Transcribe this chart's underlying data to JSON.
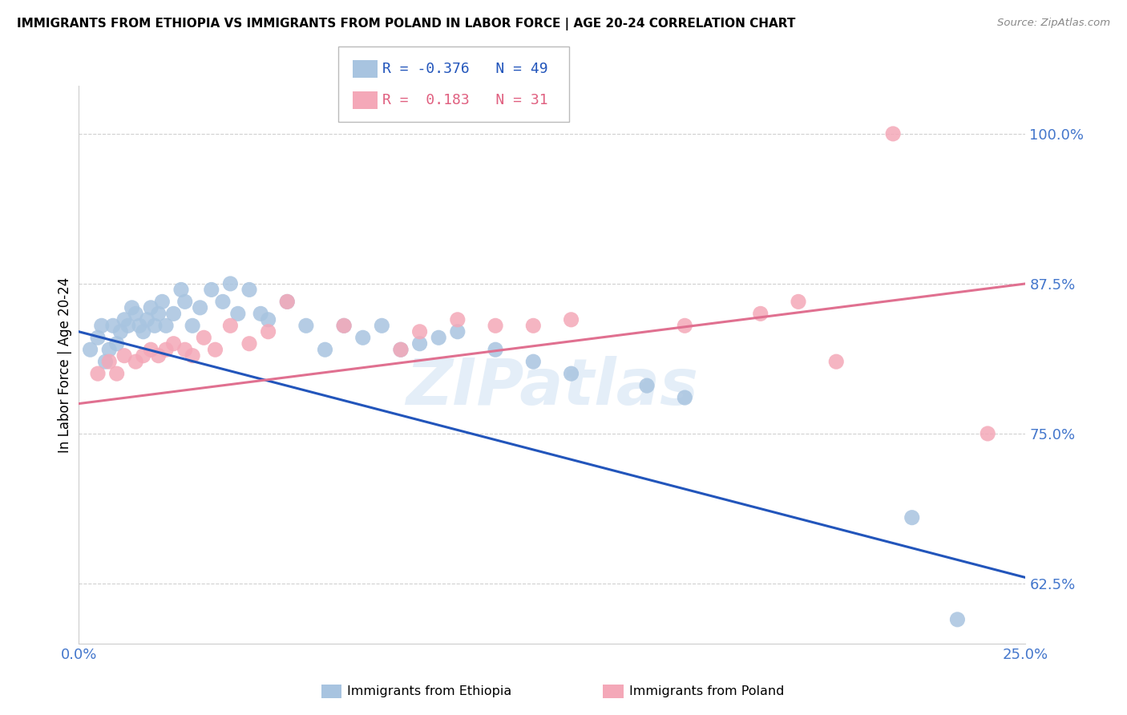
{
  "title": "IMMIGRANTS FROM ETHIOPIA VS IMMIGRANTS FROM POLAND IN LABOR FORCE | AGE 20-24 CORRELATION CHART",
  "source": "Source: ZipAtlas.com",
  "ylabel": "In Labor Force | Age 20-24",
  "yticks": [
    0.625,
    0.75,
    0.875,
    1.0
  ],
  "ytick_labels": [
    "62.5%",
    "75.0%",
    "87.5%",
    "100.0%"
  ],
  "xlim": [
    0.0,
    0.25
  ],
  "ylim": [
    0.575,
    1.04
  ],
  "ethiopia_color": "#a8c4e0",
  "poland_color": "#f4a8b8",
  "ethiopia_line_color": "#2255bb",
  "poland_line_color": "#e07090",
  "R_ethiopia": -0.376,
  "N_ethiopia": 49,
  "R_poland": 0.183,
  "N_poland": 31,
  "ethiopia_x": [
    0.003,
    0.005,
    0.006,
    0.007,
    0.008,
    0.009,
    0.01,
    0.011,
    0.012,
    0.013,
    0.014,
    0.015,
    0.016,
    0.017,
    0.018,
    0.019,
    0.02,
    0.021,
    0.022,
    0.023,
    0.025,
    0.027,
    0.028,
    0.03,
    0.032,
    0.035,
    0.038,
    0.04,
    0.042,
    0.045,
    0.048,
    0.05,
    0.055,
    0.06,
    0.065,
    0.07,
    0.075,
    0.08,
    0.085,
    0.09,
    0.095,
    0.1,
    0.11,
    0.12,
    0.13,
    0.15,
    0.16,
    0.22,
    0.232
  ],
  "ethiopia_y": [
    0.82,
    0.83,
    0.84,
    0.81,
    0.82,
    0.84,
    0.825,
    0.835,
    0.845,
    0.84,
    0.855,
    0.85,
    0.84,
    0.835,
    0.845,
    0.855,
    0.84,
    0.85,
    0.86,
    0.84,
    0.85,
    0.87,
    0.86,
    0.84,
    0.855,
    0.87,
    0.86,
    0.875,
    0.85,
    0.87,
    0.85,
    0.845,
    0.86,
    0.84,
    0.82,
    0.84,
    0.83,
    0.84,
    0.82,
    0.825,
    0.83,
    0.835,
    0.82,
    0.81,
    0.8,
    0.79,
    0.78,
    0.68,
    0.595
  ],
  "poland_x": [
    0.005,
    0.008,
    0.01,
    0.012,
    0.015,
    0.017,
    0.019,
    0.021,
    0.023,
    0.025,
    0.028,
    0.03,
    0.033,
    0.036,
    0.04,
    0.045,
    0.05,
    0.055,
    0.07,
    0.085,
    0.09,
    0.1,
    0.11,
    0.12,
    0.13,
    0.16,
    0.18,
    0.19,
    0.2,
    0.215,
    0.24
  ],
  "poland_y": [
    0.8,
    0.81,
    0.8,
    0.815,
    0.81,
    0.815,
    0.82,
    0.815,
    0.82,
    0.825,
    0.82,
    0.815,
    0.83,
    0.82,
    0.84,
    0.825,
    0.835,
    0.86,
    0.84,
    0.82,
    0.835,
    0.845,
    0.84,
    0.84,
    0.845,
    0.84,
    0.85,
    0.86,
    0.81,
    1.0,
    0.75
  ],
  "watermark": "ZIPatlas",
  "background_color": "#ffffff",
  "grid_color": "#d0d0d0"
}
